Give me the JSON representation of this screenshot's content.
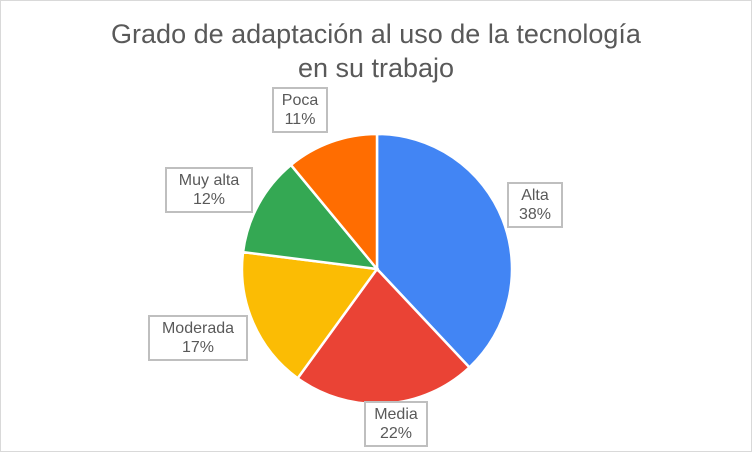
{
  "chart_data": {
    "type": "pie",
    "title": "Grado de adaptación al uso de la tecnología en su trabajo",
    "title_lines": [
      "Grado de adaptación al uso de la tecnología",
      "en su trabajo"
    ],
    "categories": [
      "Alta",
      "Media",
      "Moderada",
      "Muy alta",
      "Poca"
    ],
    "values": [
      38,
      22,
      17,
      12,
      11
    ],
    "value_labels": [
      "38%",
      "22%",
      "17%",
      "12%",
      "11%"
    ],
    "colors": [
      "#4285f4",
      "#ea4335",
      "#fbbc04",
      "#34a853",
      "#ff6d01"
    ],
    "start_angle": "12 o'clock",
    "direction": "clockwise",
    "legend": "none (callout data labels)"
  }
}
